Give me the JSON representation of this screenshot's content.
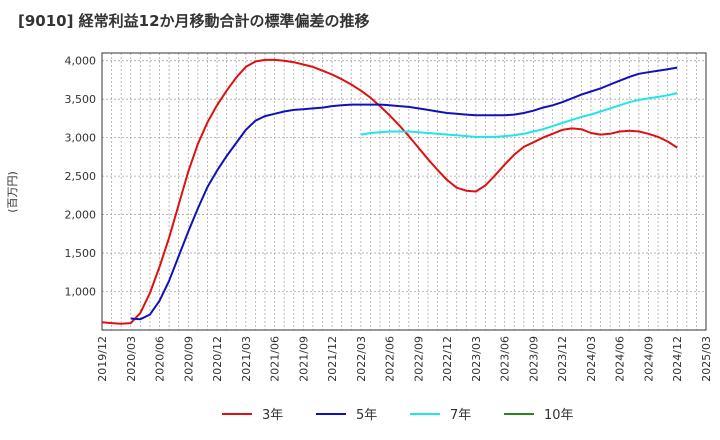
{
  "chart_data": {
    "type": "line",
    "title": "[9010]  経常利益12か月移動合計の標準偏差の推移",
    "ylabel": "(百万円)",
    "ylim": [
      500,
      4100
    ],
    "yticks": [
      1000,
      1500,
      2000,
      2500,
      3000,
      3500,
      4000
    ],
    "ytick_labels": [
      "1,000",
      "1,500",
      "2,000",
      "2,500",
      "3,000",
      "3,500",
      "4,000"
    ],
    "xlim": [
      "2019-12",
      "2025-03"
    ],
    "xtick_labels": [
      "2019/12",
      "2020/03",
      "2020/06",
      "2020/09",
      "2020/12",
      "2021/03",
      "2021/06",
      "2021/09",
      "2021/12",
      "2022/03",
      "2022/06",
      "2022/09",
      "2022/12",
      "2023/03",
      "2023/06",
      "2023/09",
      "2023/12",
      "2024/03",
      "2024/06",
      "2024/09",
      "2024/12",
      "2025/03"
    ],
    "grid": true,
    "legend_position": "bottom",
    "series": [
      {
        "name": "3年",
        "color": "#dd1111",
        "x": [
          "2019-12",
          "2020-01",
          "2020-02",
          "2020-03",
          "2020-04",
          "2020-05",
          "2020-06",
          "2020-07",
          "2020-08",
          "2020-09",
          "2020-10",
          "2020-11",
          "2020-12",
          "2021-01",
          "2021-02",
          "2021-03",
          "2021-04",
          "2021-05",
          "2021-06",
          "2021-07",
          "2021-08",
          "2021-09",
          "2021-10",
          "2021-11",
          "2021-12",
          "2022-01",
          "2022-02",
          "2022-03",
          "2022-04",
          "2022-05",
          "2022-06",
          "2022-07",
          "2022-08",
          "2022-09",
          "2022-10",
          "2022-11",
          "2022-12",
          "2023-01",
          "2023-02",
          "2023-03",
          "2023-04",
          "2023-05",
          "2023-06",
          "2023-07",
          "2023-08",
          "2023-09",
          "2023-10",
          "2023-11",
          "2023-12",
          "2024-01",
          "2024-02",
          "2024-03",
          "2024-04",
          "2024-05",
          "2024-06",
          "2024-07",
          "2024-08",
          "2024-09",
          "2024-10",
          "2024-11",
          "2024-12"
        ],
        "values": [
          600,
          590,
          580,
          590,
          720,
          980,
          1320,
          1700,
          2130,
          2560,
          2920,
          3200,
          3420,
          3610,
          3780,
          3920,
          3990,
          4010,
          4010,
          4000,
          3980,
          3950,
          3920,
          3870,
          3820,
          3760,
          3690,
          3610,
          3520,
          3410,
          3290,
          3160,
          3020,
          2870,
          2720,
          2580,
          2450,
          2350,
          2310,
          2300,
          2380,
          2510,
          2650,
          2780,
          2880,
          2940,
          3000,
          3050,
          3100,
          3120,
          3110,
          3060,
          3040,
          3050,
          3080,
          3090,
          3080,
          3050,
          3010,
          2950,
          2870
        ]
      },
      {
        "name": "5年",
        "color": "#1111bb",
        "x": [
          "2020-03",
          "2020-04",
          "2020-05",
          "2020-06",
          "2020-07",
          "2020-08",
          "2020-09",
          "2020-10",
          "2020-11",
          "2020-12",
          "2021-01",
          "2021-02",
          "2021-03",
          "2021-04",
          "2021-05",
          "2021-06",
          "2021-07",
          "2021-08",
          "2021-09",
          "2021-10",
          "2021-11",
          "2021-12",
          "2022-01",
          "2022-02",
          "2022-03",
          "2022-04",
          "2022-05",
          "2022-06",
          "2022-07",
          "2022-08",
          "2022-09",
          "2022-10",
          "2022-11",
          "2022-12",
          "2023-01",
          "2023-02",
          "2023-03",
          "2023-04",
          "2023-05",
          "2023-06",
          "2023-07",
          "2023-08",
          "2023-09",
          "2023-10",
          "2023-11",
          "2023-12",
          "2024-01",
          "2024-02",
          "2024-03",
          "2024-04",
          "2024-05",
          "2024-06",
          "2024-07",
          "2024-08",
          "2024-09",
          "2024-10",
          "2024-11",
          "2024-12"
        ],
        "values": [
          650,
          640,
          700,
          880,
          1140,
          1460,
          1780,
          2080,
          2360,
          2570,
          2760,
          2930,
          3100,
          3220,
          3280,
          3310,
          3340,
          3360,
          3370,
          3380,
          3390,
          3410,
          3420,
          3430,
          3430,
          3430,
          3430,
          3420,
          3410,
          3400,
          3380,
          3360,
          3340,
          3320,
          3310,
          3300,
          3290,
          3290,
          3290,
          3290,
          3300,
          3320,
          3350,
          3390,
          3420,
          3460,
          3510,
          3560,
          3600,
          3640,
          3690,
          3740,
          3790,
          3830,
          3850,
          3870,
          3890,
          3910
        ]
      },
      {
        "name": "7年",
        "color": "#22e5e5",
        "x": [
          "2022-03",
          "2022-04",
          "2022-05",
          "2022-06",
          "2022-07",
          "2022-08",
          "2022-09",
          "2022-10",
          "2022-11",
          "2022-12",
          "2023-01",
          "2023-02",
          "2023-03",
          "2023-04",
          "2023-05",
          "2023-06",
          "2023-07",
          "2023-08",
          "2023-09",
          "2023-10",
          "2023-11",
          "2023-12",
          "2024-01",
          "2024-02",
          "2024-03",
          "2024-04",
          "2024-05",
          "2024-06",
          "2024-07",
          "2024-08",
          "2024-09",
          "2024-10",
          "2024-11",
          "2024-12"
        ],
        "values": [
          3040,
          3060,
          3070,
          3080,
          3080,
          3080,
          3070,
          3060,
          3050,
          3040,
          3030,
          3020,
          3010,
          3010,
          3010,
          3020,
          3030,
          3050,
          3080,
          3110,
          3150,
          3190,
          3230,
          3270,
          3300,
          3340,
          3380,
          3420,
          3460,
          3490,
          3510,
          3530,
          3550,
          3580
        ]
      },
      {
        "name": "10年",
        "color": "#228822",
        "x": [],
        "values": []
      }
    ]
  }
}
